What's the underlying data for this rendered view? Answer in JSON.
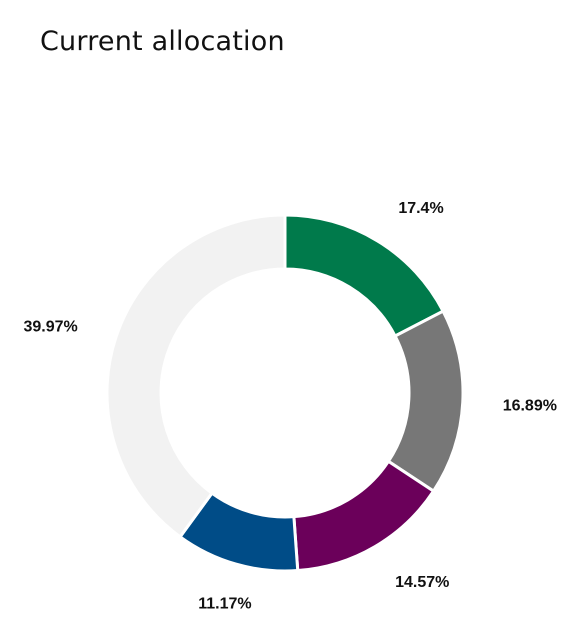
{
  "chart_data": {
    "type": "pie",
    "variant": "donut",
    "title": "Current allocation",
    "slices": [
      {
        "value": 17.4,
        "label": "17.4%",
        "color": "#007a4b"
      },
      {
        "value": 16.89,
        "label": "16.89%",
        "color": "#777777"
      },
      {
        "value": 14.57,
        "label": "14.57%",
        "color": "#6b005a"
      },
      {
        "value": 11.17,
        "label": "11.17%",
        "color": "#004c87"
      },
      {
        "value": 39.97,
        "label": "39.97%",
        "color": "#f2f2f2"
      }
    ],
    "start_angle": "top",
    "direction": "clockwise",
    "legend": "none"
  }
}
